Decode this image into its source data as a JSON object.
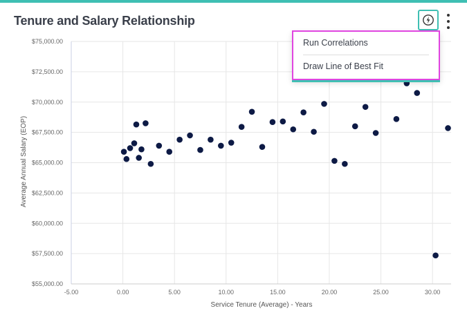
{
  "card": {
    "title": "Tenure and Salary Relationship"
  },
  "toolbar": {
    "insight_icon": "lightning-bulb-icon",
    "more_icon": "kebab-menu-icon"
  },
  "menu": {
    "items": [
      {
        "label": "Run Correlations"
      },
      {
        "label": "Draw Line of Best Fit"
      }
    ]
  },
  "colors": {
    "accent": "#3fbfb3",
    "highlight": "#e044e0",
    "point": "#0d1a45",
    "grid": "#e6e6e6"
  },
  "chart_data": {
    "type": "scatter",
    "title": "Tenure and Salary Relationship",
    "xlabel": "Service Tenure (Average) - Years",
    "ylabel": "Average Annual Salary (EOP)",
    "xlim": [
      -5,
      31.8
    ],
    "ylim": [
      55000,
      75000
    ],
    "x_ticks": [
      {
        "value": -5,
        "label": "-5.00"
      },
      {
        "value": 0,
        "label": "0.00"
      },
      {
        "value": 5,
        "label": "5.00"
      },
      {
        "value": 10,
        "label": "10.00"
      },
      {
        "value": 15,
        "label": "15.00"
      },
      {
        "value": 20,
        "label": "20.00"
      },
      {
        "value": 25,
        "label": "25.00"
      },
      {
        "value": 30,
        "label": "30.00"
      }
    ],
    "y_ticks": [
      {
        "value": 55000,
        "label": "$55,000.00"
      },
      {
        "value": 57500,
        "label": "$57,500.00"
      },
      {
        "value": 60000,
        "label": "$60,000.00"
      },
      {
        "value": 62500,
        "label": "$62,500.00"
      },
      {
        "value": 65000,
        "label": "$65,000.00"
      },
      {
        "value": 67500,
        "label": "$67,500.00"
      },
      {
        "value": 70000,
        "label": "$70,000.00"
      },
      {
        "value": 72500,
        "label": "$72,500.00"
      },
      {
        "value": 75000,
        "label": "$75,000.00"
      }
    ],
    "grid": true,
    "points": [
      {
        "x": 0.1,
        "y": 65900
      },
      {
        "x": 0.35,
        "y": 65300
      },
      {
        "x": 0.7,
        "y": 66200
      },
      {
        "x": 1.1,
        "y": 66600
      },
      {
        "x": 1.3,
        "y": 68150
      },
      {
        "x": 1.55,
        "y": 65400
      },
      {
        "x": 1.8,
        "y": 66100
      },
      {
        "x": 2.2,
        "y": 68250
      },
      {
        "x": 2.7,
        "y": 64900
      },
      {
        "x": 3.5,
        "y": 66400
      },
      {
        "x": 4.5,
        "y": 65900
      },
      {
        "x": 5.5,
        "y": 66900
      },
      {
        "x": 6.5,
        "y": 67250
      },
      {
        "x": 7.5,
        "y": 66050
      },
      {
        "x": 8.5,
        "y": 66900
      },
      {
        "x": 9.5,
        "y": 66400
      },
      {
        "x": 10.5,
        "y": 66650
      },
      {
        "x": 11.5,
        "y": 67950
      },
      {
        "x": 12.5,
        "y": 69200
      },
      {
        "x": 13.5,
        "y": 66300
      },
      {
        "x": 14.5,
        "y": 68350
      },
      {
        "x": 15.5,
        "y": 68400
      },
      {
        "x": 16.5,
        "y": 67750
      },
      {
        "x": 17.5,
        "y": 69150
      },
      {
        "x": 18.5,
        "y": 67550
      },
      {
        "x": 19.5,
        "y": 69850
      },
      {
        "x": 20.5,
        "y": 65150
      },
      {
        "x": 21.5,
        "y": 64900
      },
      {
        "x": 22.5,
        "y": 68000
      },
      {
        "x": 23.5,
        "y": 69600
      },
      {
        "x": 24.5,
        "y": 67450
      },
      {
        "x": 26.5,
        "y": 68600
      },
      {
        "x": 27.5,
        "y": 71550
      },
      {
        "x": 28.5,
        "y": 70750
      },
      {
        "x": 30.3,
        "y": 57350
      },
      {
        "x": 31.5,
        "y": 67850
      }
    ]
  }
}
